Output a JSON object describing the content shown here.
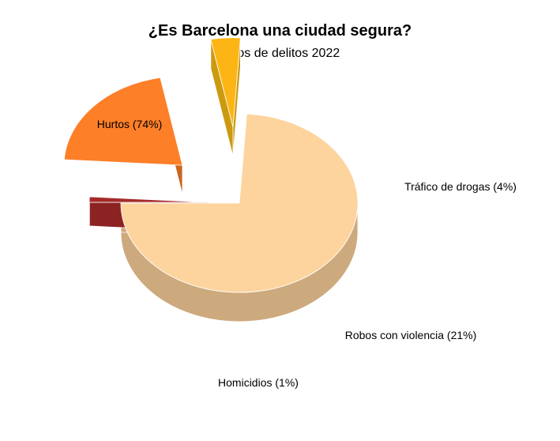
{
  "chart_data": {
    "type": "pie",
    "title": "¿Es Barcelona una ciudad segura?",
    "subtitle": "Tipos de delitos 2022",
    "style": "3d-exploded",
    "slices": [
      {
        "label": "Hurtos (74%)",
        "value": 74,
        "color": "#FDD49E",
        "side_color": "#CDA97E"
      },
      {
        "label": "Tráfico de drogas (4%)",
        "value": 4,
        "color": "#FDB515",
        "side_color": "#CB9A10"
      },
      {
        "label": "Robos con violencia (21%)",
        "value": 21,
        "color": "#FD7F28",
        "side_color": "#CB661F"
      },
      {
        "label": "Homicidios (1%)",
        "value": 1,
        "color": "#A52A2A",
        "side_color": "#8B2323"
      }
    ]
  }
}
